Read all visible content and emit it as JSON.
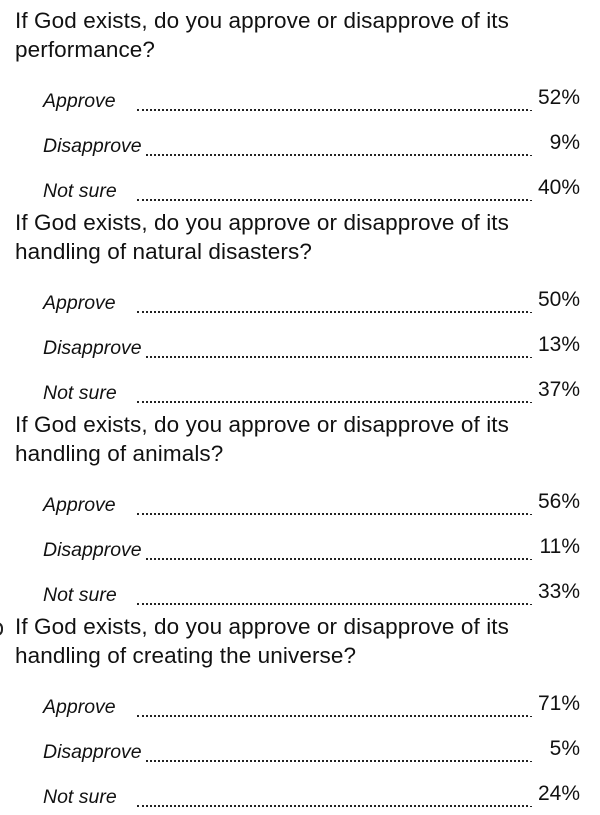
{
  "questions": [
    {
      "text": "If God exists, do you approve or disapprove of its performance?",
      "answers": [
        {
          "label": "Approve",
          "value": "52%"
        },
        {
          "label": "Disapprove",
          "value": "9%"
        },
        {
          "label": "Not sure",
          "value": "40%"
        }
      ]
    },
    {
      "text": "If God exists, do you approve or disapprove of its handling of natural disasters?",
      "answers": [
        {
          "label": "Approve",
          "value": "50%"
        },
        {
          "label": "Disapprove",
          "value": "13%"
        },
        {
          "label": "Not sure",
          "value": "37%"
        }
      ]
    },
    {
      "text": "If God exists, do you approve or disapprove of its handling of animals?",
      "answers": [
        {
          "label": "Approve",
          "value": "56%"
        },
        {
          "label": "Disapprove",
          "value": "11%"
        },
        {
          "label": "Not sure",
          "value": "33%"
        }
      ]
    },
    {
      "text": "If God exists, do you approve or disapprove of its handling of creating the universe?",
      "answers": [
        {
          "label": "Approve",
          "value": "71%"
        },
        {
          "label": "Disapprove",
          "value": "5%"
        },
        {
          "label": "Not sure",
          "value": "24%"
        }
      ]
    }
  ]
}
